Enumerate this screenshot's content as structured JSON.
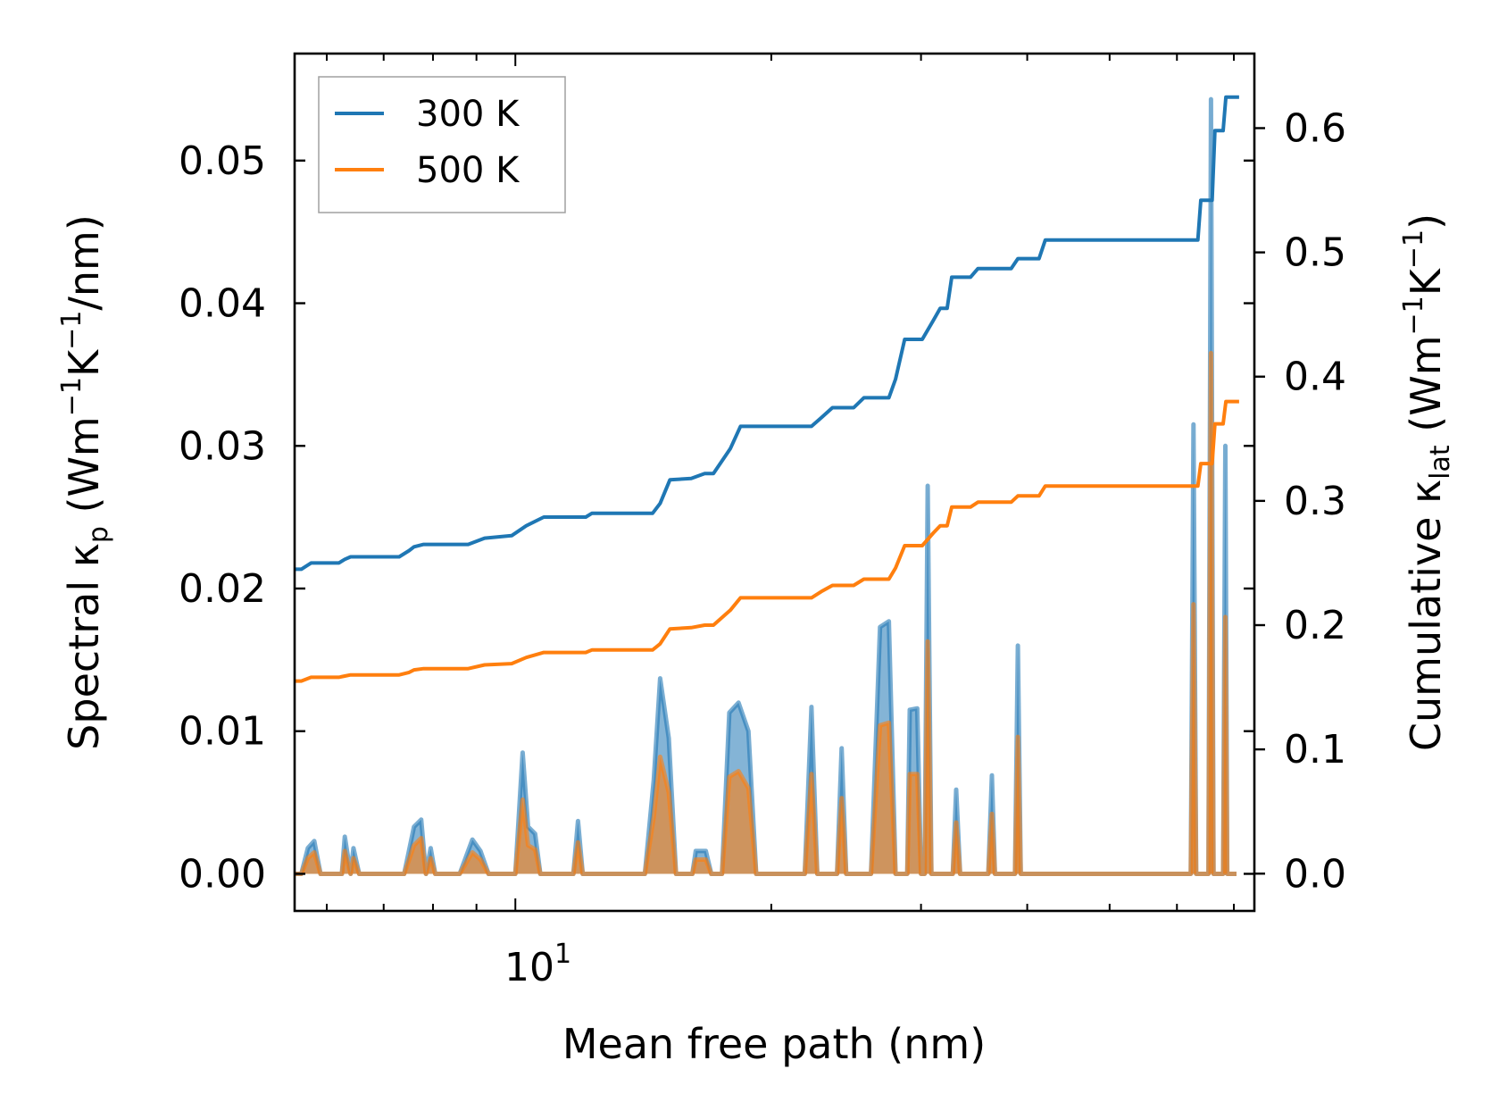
{
  "chart_data": {
    "type": "line",
    "title": "",
    "xlabel": "Mean free path (nm)",
    "xscale": "log",
    "xlim": [
      5.5,
      74
    ],
    "x_tick_label": "10",
    "x_tick_exponent": "1",
    "y_left": {
      "label_main": "Spectral κ",
      "label_sub": "p",
      "label_unit_1": " (Wm",
      "label_sup_1": "−1",
      "label_unit_2": "K",
      "label_sup_2": "−1",
      "label_unit_3": "/nm)",
      "ylim": [
        -0.0026,
        0.0575
      ],
      "ticks": [
        0.0,
        0.01,
        0.02,
        0.03,
        0.04,
        0.05
      ],
      "tick_labels": [
        "0.00",
        "0.01",
        "0.02",
        "0.03",
        "0.04",
        "0.05"
      ]
    },
    "y_right": {
      "label_main": "Cumulative κ",
      "label_sub": "lat",
      "label_unit_1": " (Wm",
      "label_sup_1": "−1",
      "label_unit_2": "K",
      "label_sup_2": "−1",
      "label_unit_3": ")",
      "ylim": [
        -0.03,
        0.66
      ],
      "ticks": [
        0.0,
        0.1,
        0.2,
        0.3,
        0.4,
        0.5,
        0.6
      ],
      "tick_labels": [
        "0.0",
        "0.1",
        "0.2",
        "0.3",
        "0.4",
        "0.5",
        "0.6"
      ]
    },
    "legend": {
      "position": "top-left",
      "entries": [
        {
          "label": "300 K",
          "color": "#1f77b4"
        },
        {
          "label": "500 K",
          "color": "#ff7f0e"
        }
      ]
    },
    "series": [
      {
        "name": "300 K",
        "color": "#1f77b4",
        "cumulative": [
          [
            5.5,
            0.245
          ],
          [
            5.6,
            0.245
          ],
          [
            5.75,
            0.25
          ],
          [
            6.2,
            0.25
          ],
          [
            6.3,
            0.253
          ],
          [
            6.4,
            0.255
          ],
          [
            7.3,
            0.255
          ],
          [
            7.5,
            0.26
          ],
          [
            7.6,
            0.263
          ],
          [
            7.8,
            0.265
          ],
          [
            8.8,
            0.265
          ],
          [
            9.2,
            0.27
          ],
          [
            9.9,
            0.272
          ],
          [
            10.3,
            0.28
          ],
          [
            10.8,
            0.287
          ],
          [
            12.1,
            0.287
          ],
          [
            12.3,
            0.29
          ],
          [
            14.5,
            0.29
          ],
          [
            14.8,
            0.298
          ],
          [
            15.2,
            0.317
          ],
          [
            16.1,
            0.318
          ],
          [
            16.7,
            0.322
          ],
          [
            17.1,
            0.322
          ],
          [
            17.9,
            0.342
          ],
          [
            18.4,
            0.36
          ],
          [
            22.3,
            0.36
          ],
          [
            22.9,
            0.367
          ],
          [
            23.6,
            0.375
          ],
          [
            25.0,
            0.375
          ],
          [
            25.7,
            0.383
          ],
          [
            27.5,
            0.383
          ],
          [
            28.0,
            0.398
          ],
          [
            28.7,
            0.43
          ],
          [
            30.1,
            0.43
          ],
          [
            31.0,
            0.445
          ],
          [
            31.6,
            0.455
          ],
          [
            32.2,
            0.455
          ],
          [
            32.6,
            0.48
          ],
          [
            34.3,
            0.48
          ],
          [
            35.0,
            0.487
          ],
          [
            38.3,
            0.487
          ],
          [
            39.0,
            0.495
          ],
          [
            41.3,
            0.495
          ],
          [
            42.0,
            0.51
          ],
          [
            63.5,
            0.51
          ],
          [
            64.0,
            0.542
          ],
          [
            66.0,
            0.542
          ],
          [
            66.5,
            0.598
          ],
          [
            68.0,
            0.598
          ],
          [
            68.5,
            0.625
          ],
          [
            71.0,
            0.625
          ]
        ],
        "spectral": [
          [
            5.5,
            0.0
          ],
          [
            5.6,
            0.0
          ],
          [
            5.7,
            0.0018
          ],
          [
            5.8,
            0.0023
          ],
          [
            5.9,
            0.0
          ],
          [
            6.25,
            0.0
          ],
          [
            6.3,
            0.0026
          ],
          [
            6.4,
            0.0
          ],
          [
            6.45,
            0.0018
          ],
          [
            6.55,
            0.0
          ],
          [
            7.4,
            0.0
          ],
          [
            7.6,
            0.0033
          ],
          [
            7.75,
            0.0038
          ],
          [
            7.85,
            0.0
          ],
          [
            7.95,
            0.0018
          ],
          [
            8.05,
            0.0
          ],
          [
            8.6,
            0.0
          ],
          [
            8.9,
            0.0024
          ],
          [
            9.1,
            0.0016
          ],
          [
            9.3,
            0.0
          ],
          [
            10.0,
            0.0
          ],
          [
            10.2,
            0.0085
          ],
          [
            10.35,
            0.0033
          ],
          [
            10.55,
            0.0028
          ],
          [
            10.7,
            0.0
          ],
          [
            11.7,
            0.0
          ],
          [
            11.85,
            0.0037
          ],
          [
            12.0,
            0.0
          ],
          [
            14.2,
            0.0
          ],
          [
            14.55,
            0.0066
          ],
          [
            14.8,
            0.0137
          ],
          [
            15.15,
            0.0095
          ],
          [
            15.45,
            0.0
          ],
          [
            16.15,
            0.0
          ],
          [
            16.3,
            0.0016
          ],
          [
            16.75,
            0.0016
          ],
          [
            17.0,
            0.0
          ],
          [
            17.5,
            0.0
          ],
          [
            17.85,
            0.0113
          ],
          [
            18.3,
            0.012
          ],
          [
            18.8,
            0.01
          ],
          [
            19.2,
            0.0
          ],
          [
            21.9,
            0.0
          ],
          [
            22.3,
            0.0117
          ],
          [
            22.65,
            0.0
          ],
          [
            23.9,
            0.0
          ],
          [
            24.2,
            0.0088
          ],
          [
            24.5,
            0.0
          ],
          [
            26.2,
            0.0
          ],
          [
            26.85,
            0.0173
          ],
          [
            27.5,
            0.0177
          ],
          [
            28.0,
            0.0
          ],
          [
            28.9,
            0.0
          ],
          [
            29.1,
            0.0115
          ],
          [
            29.7,
            0.0116
          ],
          [
            30.0,
            0.0
          ],
          [
            30.3,
            0.0
          ],
          [
            30.55,
            0.0272
          ],
          [
            30.85,
            0.0
          ],
          [
            32.7,
            0.0
          ],
          [
            33.0,
            0.0059
          ],
          [
            33.35,
            0.0
          ],
          [
            36.0,
            0.0
          ],
          [
            36.35,
            0.0069
          ],
          [
            36.65,
            0.0
          ],
          [
            38.7,
            0.0
          ],
          [
            39.0,
            0.016
          ],
          [
            39.3,
            0.0
          ],
          [
            62.3,
            0.0
          ],
          [
            62.75,
            0.0315
          ],
          [
            63.2,
            0.0
          ],
          [
            65.35,
            0.0
          ],
          [
            65.8,
            0.0543
          ],
          [
            66.25,
            0.0
          ],
          [
            68.0,
            0.0
          ],
          [
            68.4,
            0.03
          ],
          [
            68.75,
            0.0
          ],
          [
            70.5,
            0.0
          ]
        ]
      },
      {
        "name": "500 K",
        "color": "#ff7f0e",
        "cumulative": [
          [
            5.5,
            0.155
          ],
          [
            5.6,
            0.155
          ],
          [
            5.75,
            0.158
          ],
          [
            6.2,
            0.158
          ],
          [
            6.3,
            0.159
          ],
          [
            6.4,
            0.16
          ],
          [
            7.3,
            0.16
          ],
          [
            7.5,
            0.162
          ],
          [
            7.6,
            0.164
          ],
          [
            7.8,
            0.165
          ],
          [
            8.8,
            0.165
          ],
          [
            9.2,
            0.168
          ],
          [
            9.9,
            0.169
          ],
          [
            10.3,
            0.174
          ],
          [
            10.8,
            0.178
          ],
          [
            12.1,
            0.178
          ],
          [
            12.3,
            0.18
          ],
          [
            14.5,
            0.18
          ],
          [
            14.8,
            0.185
          ],
          [
            15.2,
            0.197
          ],
          [
            16.1,
            0.198
          ],
          [
            16.7,
            0.2
          ],
          [
            17.1,
            0.2
          ],
          [
            17.9,
            0.212
          ],
          [
            18.4,
            0.222
          ],
          [
            22.3,
            0.222
          ],
          [
            22.9,
            0.227
          ],
          [
            23.6,
            0.232
          ],
          [
            25.0,
            0.232
          ],
          [
            25.7,
            0.237
          ],
          [
            27.5,
            0.237
          ],
          [
            28.0,
            0.246
          ],
          [
            28.7,
            0.264
          ],
          [
            30.1,
            0.264
          ],
          [
            31.0,
            0.274
          ],
          [
            31.6,
            0.28
          ],
          [
            32.2,
            0.28
          ],
          [
            32.6,
            0.295
          ],
          [
            34.3,
            0.295
          ],
          [
            35.0,
            0.299
          ],
          [
            38.3,
            0.299
          ],
          [
            39.0,
            0.304
          ],
          [
            41.3,
            0.304
          ],
          [
            42.0,
            0.312
          ],
          [
            63.5,
            0.312
          ],
          [
            64.0,
            0.33
          ],
          [
            66.0,
            0.33
          ],
          [
            66.5,
            0.362
          ],
          [
            68.0,
            0.362
          ],
          [
            68.5,
            0.38
          ],
          [
            71.0,
            0.38
          ]
        ],
        "spectral": [
          [
            5.5,
            0.0
          ],
          [
            5.6,
            0.0
          ],
          [
            5.7,
            0.0011
          ],
          [
            5.8,
            0.0015
          ],
          [
            5.9,
            0.0
          ],
          [
            6.25,
            0.0
          ],
          [
            6.3,
            0.0016
          ],
          [
            6.4,
            0.0
          ],
          [
            6.45,
            0.0011
          ],
          [
            6.55,
            0.0
          ],
          [
            7.4,
            0.0
          ],
          [
            7.6,
            0.002
          ],
          [
            7.75,
            0.0025
          ],
          [
            7.85,
            0.0
          ],
          [
            7.95,
            0.0011
          ],
          [
            8.05,
            0.0
          ],
          [
            8.6,
            0.0
          ],
          [
            8.9,
            0.0015
          ],
          [
            9.1,
            0.001
          ],
          [
            9.3,
            0.0
          ],
          [
            10.0,
            0.0
          ],
          [
            10.2,
            0.0052
          ],
          [
            10.35,
            0.002
          ],
          [
            10.55,
            0.0017
          ],
          [
            10.7,
            0.0
          ],
          [
            11.7,
            0.0
          ],
          [
            11.85,
            0.0022
          ],
          [
            12.0,
            0.0
          ],
          [
            14.2,
            0.0
          ],
          [
            14.55,
            0.004
          ],
          [
            14.8,
            0.0082
          ],
          [
            15.15,
            0.0057
          ],
          [
            15.45,
            0.0
          ],
          [
            16.15,
            0.0
          ],
          [
            16.3,
            0.001
          ],
          [
            16.75,
            0.001
          ],
          [
            17.0,
            0.0
          ],
          [
            17.5,
            0.0
          ],
          [
            17.85,
            0.0068
          ],
          [
            18.3,
            0.0072
          ],
          [
            18.8,
            0.006
          ],
          [
            19.2,
            0.0
          ],
          [
            21.9,
            0.0
          ],
          [
            22.3,
            0.007
          ],
          [
            22.65,
            0.0
          ],
          [
            23.9,
            0.0
          ],
          [
            24.2,
            0.0053
          ],
          [
            24.5,
            0.0
          ],
          [
            26.2,
            0.0
          ],
          [
            26.85,
            0.0104
          ],
          [
            27.5,
            0.0106
          ],
          [
            28.0,
            0.0
          ],
          [
            28.9,
            0.0
          ],
          [
            29.1,
            0.007
          ],
          [
            29.7,
            0.007
          ],
          [
            30.0,
            0.0
          ],
          [
            30.3,
            0.0
          ],
          [
            30.55,
            0.0163
          ],
          [
            30.85,
            0.0
          ],
          [
            32.7,
            0.0
          ],
          [
            33.0,
            0.0036
          ],
          [
            33.35,
            0.0
          ],
          [
            36.0,
            0.0
          ],
          [
            36.35,
            0.0042
          ],
          [
            36.65,
            0.0
          ],
          [
            38.7,
            0.0
          ],
          [
            39.0,
            0.0096
          ],
          [
            39.3,
            0.0
          ],
          [
            62.3,
            0.0
          ],
          [
            62.75,
            0.0189
          ],
          [
            63.2,
            0.0
          ],
          [
            65.35,
            0.0
          ],
          [
            65.8,
            0.0365
          ],
          [
            66.25,
            0.0
          ],
          [
            68.0,
            0.0
          ],
          [
            68.4,
            0.018
          ],
          [
            68.75,
            0.0
          ],
          [
            70.5,
            0.0
          ]
        ]
      }
    ]
  }
}
